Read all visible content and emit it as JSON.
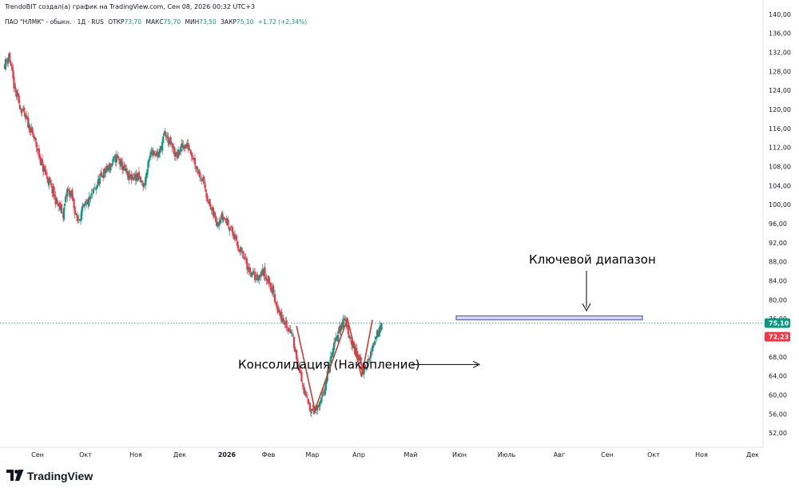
{
  "header": {
    "publisher_line": "TrendoBIT создал(а) график на TradingView.com, Сен 08, 2026 00:32 UTC+3"
  },
  "legend": {
    "symbol": "ПАО \"НЛМК\" - обыкн. · 1Д · RUS",
    "open_label": "ОТКР",
    "open": "73,70",
    "high_label": "МАКС",
    "high": "75,70",
    "low_label": "МИН",
    "low": "73,50",
    "close_label": "ЗАКР",
    "close": "75,10",
    "change": "+1,72 (+2,34%)"
  },
  "footer": {
    "brand": "TradingView"
  },
  "colors": {
    "up": "#089981",
    "down": "#f23645",
    "level": "#5b5bd6",
    "pattern": "#d03a2c"
  },
  "chart_data": {
    "type": "candlestick",
    "y_axis": {
      "ylim": [
        49,
        142
      ],
      "ticks": [
        "140,00",
        "136,00",
        "132,00",
        "128,00",
        "124,00",
        "120,00",
        "116,00",
        "112,00",
        "108,00",
        "104,00",
        "100,00",
        "96,00",
        "92,00",
        "88,00",
        "84,00",
        "80,00",
        "76,00",
        "72,00",
        "68,00",
        "64,00",
        "60,00",
        "56,00",
        "52,00"
      ]
    },
    "x_axis": {
      "ticks": [
        "Сен",
        "Окт",
        "Ноя",
        "Дек",
        "2026",
        "Фев",
        "Мар",
        "Апр",
        "Май",
        "Июн",
        "Июль",
        "Авг",
        "Сен",
        "Окт",
        "Ноя",
        "Дек"
      ]
    },
    "price_labels": [
      {
        "value": "75,10",
        "role": "last-price",
        "color": "#089981"
      },
      {
        "value": "72,23",
        "role": "marker",
        "color": "#f23645"
      }
    ],
    "approx_close_path": [
      [
        0,
        129.5
      ],
      [
        5,
        131.5
      ],
      [
        12,
        124
      ],
      [
        20,
        120
      ],
      [
        28,
        117
      ],
      [
        36,
        113.5
      ],
      [
        45,
        108
      ],
      [
        55,
        104
      ],
      [
        62,
        100.5
      ],
      [
        70,
        98
      ],
      [
        75,
        103
      ],
      [
        80,
        102
      ],
      [
        87,
        96.5
      ],
      [
        94,
        99
      ],
      [
        102,
        101
      ],
      [
        110,
        104
      ],
      [
        118,
        106.5
      ],
      [
        126,
        108
      ],
      [
        134,
        110
      ],
      [
        141,
        108
      ],
      [
        149,
        105.5
      ],
      [
        158,
        106
      ],
      [
        167,
        104
      ],
      [
        176,
        111.5
      ],
      [
        185,
        110.5
      ],
      [
        192,
        115
      ],
      [
        198,
        113
      ],
      [
        206,
        110
      ],
      [
        214,
        112.5
      ],
      [
        222,
        112
      ],
      [
        230,
        108
      ],
      [
        238,
        105
      ],
      [
        246,
        99.5
      ],
      [
        254,
        96.5
      ],
      [
        262,
        97.5
      ],
      [
        270,
        95.5
      ],
      [
        278,
        92
      ],
      [
        286,
        89
      ],
      [
        294,
        86
      ],
      [
        302,
        84.5
      ],
      [
        310,
        86
      ],
      [
        318,
        83.5
      ],
      [
        326,
        79
      ],
      [
        332,
        76
      ],
      [
        338,
        74.5
      ],
      [
        343,
        73.5
      ],
      [
        348,
        70
      ],
      [
        354,
        64.5
      ],
      [
        360,
        60
      ],
      [
        366,
        57.5
      ],
      [
        372,
        56.8
      ],
      [
        378,
        57.5
      ],
      [
        384,
        62
      ],
      [
        390,
        66.5
      ],
      [
        396,
        71
      ],
      [
        402,
        74
      ],
      [
        408,
        76
      ],
      [
        412,
        73.5
      ],
      [
        418,
        70
      ],
      [
        424,
        68
      ],
      [
        430,
        65
      ],
      [
        436,
        67
      ],
      [
        442,
        70.5
      ],
      [
        448,
        73.5
      ],
      [
        452,
        75.1
      ]
    ],
    "annotations": [
      {
        "text": "Ключевой диапазон",
        "type": "horizontal-zone",
        "y_range": [
          75.8,
          76.6
        ]
      },
      {
        "text": "Консолидация (Накопление)",
        "type": "arrow-label",
        "y": 66.4
      }
    ],
    "overlays": {
      "double_bottom_path": [
        [
          350,
          74.5
        ],
        [
          372,
          56.8
        ],
        [
          411,
          76.0
        ],
        [
          428,
          63.8
        ],
        [
          441,
          75.8
        ]
      ],
      "last_price_line": 75.1
    }
  }
}
